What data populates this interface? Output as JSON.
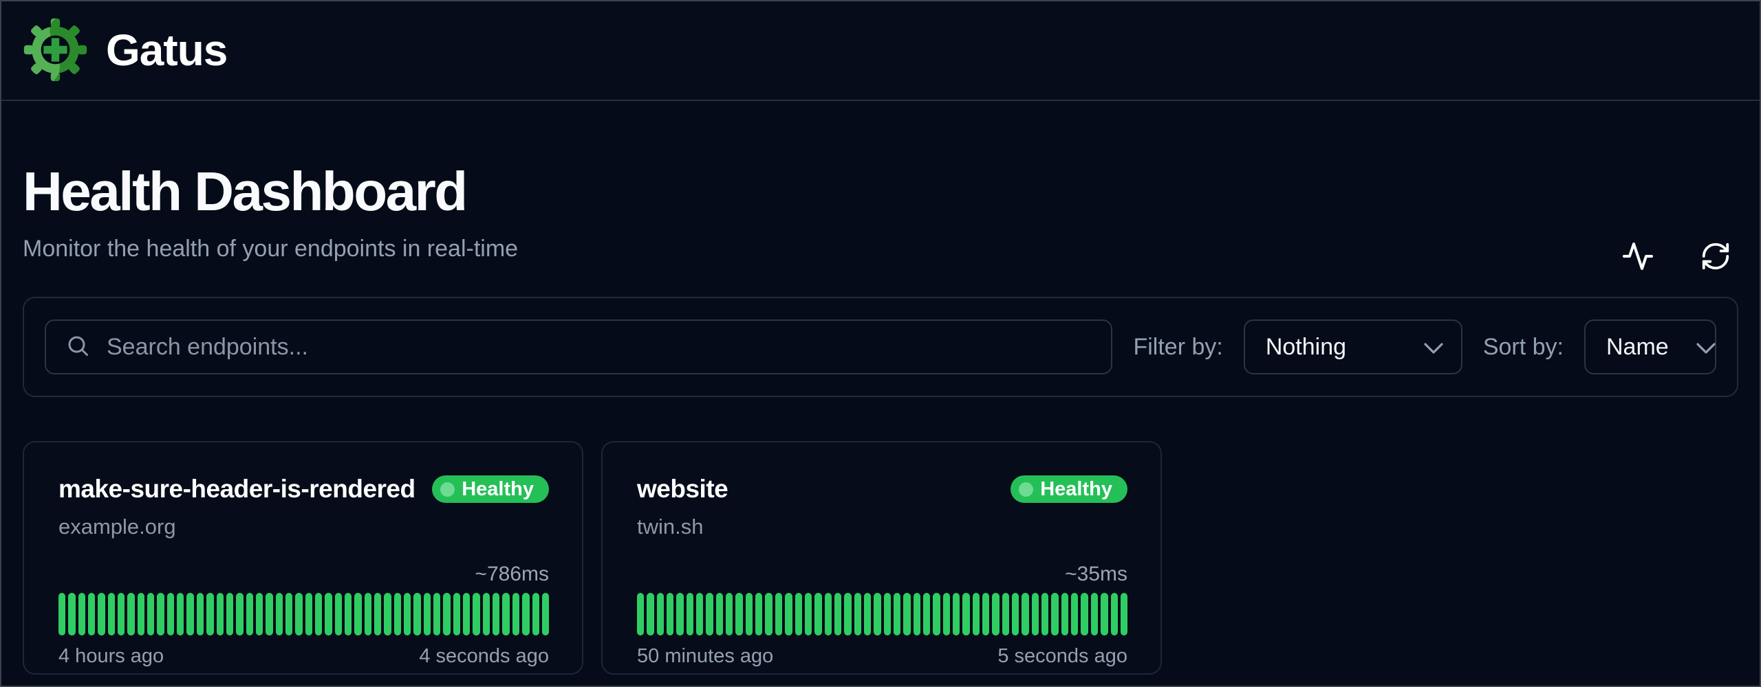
{
  "app": {
    "name": "Gatus"
  },
  "page": {
    "title": "Health Dashboard",
    "subtitle": "Monitor the health of your endpoints in real-time",
    "actions": [
      {
        "icon": "activity-pulse-icon"
      },
      {
        "icon": "refresh-icon"
      }
    ]
  },
  "toolbar": {
    "search": {
      "icon": "search-icon",
      "placeholder": "Search endpoints...",
      "value": ""
    },
    "filter": {
      "label": "Filter by:",
      "value": "Nothing",
      "icon": "chevron-down-icon"
    },
    "sort": {
      "label": "Sort by:",
      "value": "Name",
      "icon": "chevron-down-icon"
    }
  },
  "cards": [
    {
      "name": "make-sure-header-is-rendered",
      "host": "example.org",
      "status": "Healthy",
      "response_time": "~786ms",
      "history": {
        "bar_count": 50,
        "all_success": true,
        "oldest": "4 hours ago",
        "newest": "4 seconds ago"
      }
    },
    {
      "name": "website",
      "host": "twin.sh",
      "status": "Healthy",
      "response_time": "~35ms",
      "history": {
        "bar_count": 50,
        "all_success": true,
        "oldest": "50 minutes ago",
        "newest": "5 seconds ago"
      }
    }
  ],
  "colors": {
    "success_bar": "#2fcd63",
    "badge_bg": "#25bf58",
    "badge_dot": "#6ddc92",
    "background": "#050b18",
    "card_border": "#1e2737",
    "logo_green_light": "#55b155",
    "logo_green_dark": "#2b8a2b",
    "logo_plus": "#2f9e3f"
  }
}
